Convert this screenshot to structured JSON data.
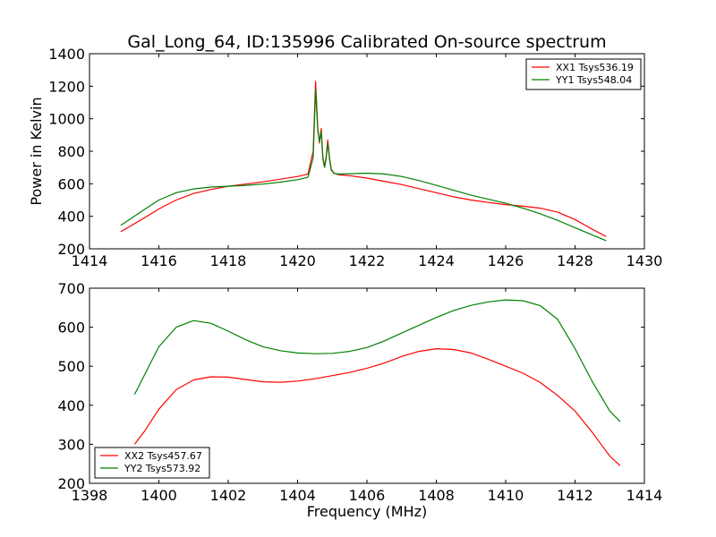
{
  "title": "Gal_Long_64, ID:135996 Calibrated On-source spectrum",
  "colors": {
    "xx": "#ff0000",
    "yy": "#008000",
    "axes": "#000000",
    "background": "#ffffff"
  },
  "chart_data": [
    {
      "type": "line",
      "title": "Gal_Long_64, ID:135996 Calibrated On-source spectrum",
      "xlabel": "",
      "ylabel": "Power in Kelvin",
      "xlim": [
        1414,
        1430
      ],
      "ylim": [
        200,
        1400
      ],
      "xticks": [
        "1414",
        "1416",
        "1418",
        "1420",
        "1422",
        "1424",
        "1426",
        "1428",
        "1430"
      ],
      "yticks": [
        "200",
        "400",
        "600",
        "800",
        "1000",
        "1200",
        "1400"
      ],
      "grid": false,
      "legend_position": "top-right",
      "series": [
        {
          "name": "XX1 Tsys536.19",
          "color": "#ff0000",
          "x": [
            1414.9,
            1415.5,
            1416.0,
            1416.5,
            1417.0,
            1417.5,
            1418.0,
            1418.5,
            1419.0,
            1419.5,
            1420.0,
            1420.3,
            1420.45,
            1420.52,
            1420.58,
            1420.63,
            1420.68,
            1420.73,
            1420.78,
            1420.82,
            1420.87,
            1420.92,
            1420.97,
            1421.05,
            1421.2,
            1421.5,
            1422.0,
            1422.5,
            1423.0,
            1423.5,
            1424.0,
            1424.5,
            1425.0,
            1425.5,
            1426.0,
            1426.5,
            1427.0,
            1427.5,
            1428.0,
            1428.5,
            1428.9
          ],
          "y": [
            305,
            380,
            445,
            500,
            540,
            565,
            585,
            598,
            612,
            628,
            645,
            660,
            800,
            1230,
            950,
            850,
            940,
            760,
            710,
            760,
            870,
            760,
            690,
            665,
            655,
            650,
            635,
            615,
            595,
            570,
            545,
            520,
            500,
            485,
            472,
            462,
            450,
            425,
            380,
            320,
            275
          ]
        },
        {
          "name": "YY1 Tsys548.04",
          "color": "#008000",
          "x": [
            1414.9,
            1415.5,
            1416.0,
            1416.5,
            1417.0,
            1417.5,
            1418.0,
            1418.5,
            1419.0,
            1419.5,
            1420.0,
            1420.3,
            1420.45,
            1420.52,
            1420.58,
            1420.63,
            1420.68,
            1420.73,
            1420.78,
            1420.82,
            1420.87,
            1420.92,
            1420.97,
            1421.05,
            1421.2,
            1421.5,
            1422.0,
            1422.5,
            1423.0,
            1423.5,
            1424.0,
            1424.5,
            1425.0,
            1425.5,
            1426.0,
            1426.5,
            1427.0,
            1427.5,
            1428.0,
            1428.5,
            1428.9
          ],
          "y": [
            345,
            430,
            500,
            545,
            568,
            580,
            585,
            590,
            598,
            610,
            625,
            640,
            760,
            1180,
            930,
            860,
            920,
            750,
            700,
            750,
            850,
            750,
            685,
            663,
            660,
            662,
            665,
            660,
            645,
            620,
            590,
            560,
            530,
            505,
            480,
            450,
            415,
            375,
            330,
            285,
            250
          ]
        }
      ]
    },
    {
      "type": "line",
      "title": "",
      "xlabel": "Frequency (MHz)",
      "ylabel": "",
      "xlim": [
        1398,
        1414
      ],
      "ylim": [
        200,
        700
      ],
      "xticks": [
        "1398",
        "1400",
        "1402",
        "1404",
        "1406",
        "1408",
        "1410",
        "1412",
        "1414"
      ],
      "yticks": [
        "200",
        "300",
        "400",
        "500",
        "600",
        "700"
      ],
      "grid": false,
      "legend_position": "bottom-left",
      "series": [
        {
          "name": "XX2 Tsys457.67",
          "color": "#ff0000",
          "x": [
            1399.3,
            1399.6,
            1400.0,
            1400.5,
            1401.0,
            1401.5,
            1402.0,
            1402.5,
            1403.0,
            1403.5,
            1404.0,
            1404.5,
            1405.0,
            1405.5,
            1406.0,
            1406.5,
            1407.0,
            1407.5,
            1408.0,
            1408.5,
            1409.0,
            1409.5,
            1410.0,
            1410.5,
            1411.0,
            1411.5,
            1412.0,
            1412.5,
            1413.0,
            1413.3
          ],
          "y": [
            300,
            335,
            390,
            440,
            465,
            473,
            472,
            466,
            460,
            459,
            462,
            468,
            476,
            484,
            495,
            508,
            525,
            538,
            545,
            543,
            534,
            518,
            500,
            482,
            458,
            425,
            385,
            330,
            270,
            245
          ]
        },
        {
          "name": "YY2 Tsys573.92",
          "color": "#008000",
          "x": [
            1399.3,
            1399.6,
            1400.0,
            1400.5,
            1401.0,
            1401.5,
            1402.0,
            1402.5,
            1403.0,
            1403.5,
            1404.0,
            1404.5,
            1405.0,
            1405.5,
            1406.0,
            1406.5,
            1407.0,
            1407.5,
            1408.0,
            1408.5,
            1409.0,
            1409.5,
            1410.0,
            1410.5,
            1411.0,
            1411.5,
            1412.0,
            1412.5,
            1413.0,
            1413.3
          ],
          "y": [
            428,
            480,
            550,
            600,
            617,
            610,
            590,
            568,
            550,
            540,
            534,
            532,
            533,
            538,
            548,
            565,
            585,
            605,
            625,
            643,
            656,
            665,
            670,
            668,
            655,
            620,
            545,
            460,
            385,
            358
          ]
        }
      ]
    }
  ]
}
